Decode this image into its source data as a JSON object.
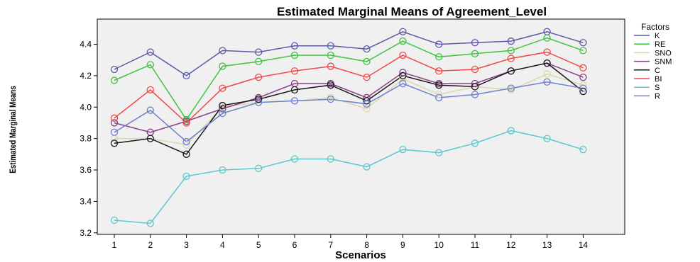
{
  "chart_data": {
    "type": "line",
    "title": "Estimated Marginal Means of Agreement_Level",
    "xlabel": "Scenarios",
    "ylabel": "Estimated Marginal Means",
    "x": [
      "1",
      "2",
      "3",
      "4",
      "5",
      "6",
      "7",
      "8",
      "9",
      "10",
      "11",
      "12",
      "13",
      "14"
    ],
    "ylim": [
      3.19,
      4.56
    ],
    "yticks": [
      "3.2",
      "3.4",
      "3.6",
      "3.8",
      "4.0",
      "4.2",
      "4.4"
    ],
    "grid": false,
    "legend_title": "Factors",
    "legend_position": "right",
    "series": [
      {
        "name": "K",
        "color": "#5a5aa8",
        "values": [
          4.24,
          4.35,
          4.2,
          4.36,
          4.35,
          4.39,
          4.39,
          4.37,
          4.48,
          4.4,
          4.41,
          4.42,
          4.48,
          4.41
        ]
      },
      {
        "name": "RE",
        "color": "#3fc43f",
        "values": [
          4.17,
          4.27,
          3.92,
          4.26,
          4.29,
          4.33,
          4.33,
          4.29,
          4.42,
          4.32,
          4.34,
          4.36,
          4.44,
          4.36
        ]
      },
      {
        "name": "SNO",
        "color": "#d8d8b0",
        "values": [
          3.8,
          3.8,
          3.76,
          4.0,
          4.03,
          4.04,
          4.06,
          3.99,
          4.18,
          4.08,
          4.13,
          4.11,
          4.21,
          4.14
        ]
      },
      {
        "name": "SNM",
        "color": "#8a3d8a",
        "values": [
          3.9,
          3.84,
          3.91,
          3.99,
          4.06,
          4.15,
          4.15,
          4.06,
          4.22,
          4.15,
          4.15,
          4.23,
          4.28,
          4.19
        ]
      },
      {
        "name": "C",
        "color": "#1a1a1a",
        "values": [
          3.77,
          3.8,
          3.7,
          4.01,
          4.05,
          4.11,
          4.14,
          4.04,
          4.2,
          4.14,
          4.13,
          4.23,
          4.28,
          4.1
        ]
      },
      {
        "name": "BI",
        "color": "#f04848",
        "values": [
          3.93,
          4.11,
          3.9,
          4.12,
          4.19,
          4.23,
          4.26,
          4.19,
          4.33,
          4.23,
          4.24,
          4.31,
          4.35,
          4.25
        ]
      },
      {
        "name": "S",
        "color": "#5bc8d0",
        "values": [
          3.28,
          3.26,
          3.56,
          3.6,
          3.61,
          3.67,
          3.67,
          3.62,
          3.73,
          3.71,
          3.77,
          3.85,
          3.8,
          3.73
        ]
      },
      {
        "name": "R",
        "color": "#7080cc",
        "values": [
          3.84,
          3.98,
          3.78,
          3.96,
          4.03,
          4.04,
          4.05,
          4.02,
          4.15,
          4.06,
          4.08,
          4.12,
          4.16,
          4.12
        ]
      }
    ]
  }
}
